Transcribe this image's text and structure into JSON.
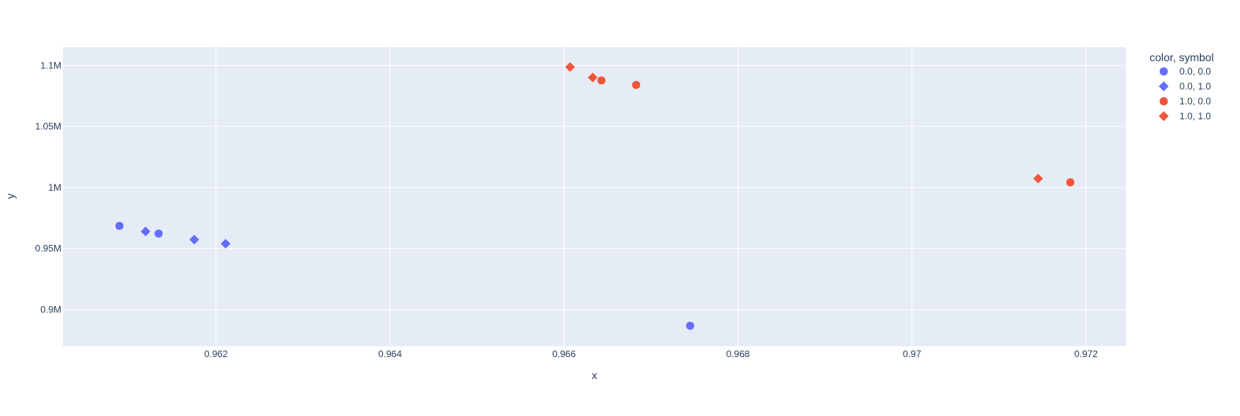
{
  "chart_data": {
    "type": "scatter",
    "xlabel": "x",
    "ylabel": "y",
    "xlim": [
      0.96024,
      0.97246
    ],
    "ylim": [
      870000,
      1115000
    ],
    "x_ticks": [
      0.962,
      0.964,
      0.966,
      0.968,
      0.97,
      0.972
    ],
    "x_tick_labels": [
      "0.962",
      "0.964",
      "0.966",
      "0.968",
      "0.97",
      "0.972"
    ],
    "y_ticks": [
      900000,
      950000,
      1000000,
      1050000,
      1100000
    ],
    "y_tick_labels": [
      "0.9M",
      "0.95M",
      "1M",
      "1.05M",
      "1.1M"
    ],
    "grid": true,
    "legend": {
      "title": "color, symbol",
      "position": "top-right"
    },
    "colors": {
      "0.0": "#636efa",
      "1.0": "#ef553b",
      "plot_bg": "#e5ecf6",
      "grid": "#ffffff",
      "text": "#2a3f5f"
    },
    "series": [
      {
        "name": "0.0, 0.0",
        "color": "0.0",
        "symbol": "circle",
        "points": [
          {
            "x": 0.96089,
            "y": 968500
          },
          {
            "x": 0.96134,
            "y": 962200
          },
          {
            "x": 0.96745,
            "y": 886700
          }
        ]
      },
      {
        "name": "0.0, 1.0",
        "color": "0.0",
        "symbol": "diamond",
        "points": [
          {
            "x": 0.96119,
            "y": 964000
          },
          {
            "x": 0.96175,
            "y": 957300
          },
          {
            "x": 0.96211,
            "y": 953900
          }
        ]
      },
      {
        "name": "1.0, 0.0",
        "color": "1.0",
        "symbol": "circle",
        "points": [
          {
            "x": 0.96643,
            "y": 1087700
          },
          {
            "x": 0.96683,
            "y": 1084000
          },
          {
            "x": 0.97182,
            "y": 1004200
          }
        ]
      },
      {
        "name": "1.0, 1.0",
        "color": "1.0",
        "symbol": "diamond",
        "points": [
          {
            "x": 0.96607,
            "y": 1098700
          },
          {
            "x": 0.96633,
            "y": 1090100
          },
          {
            "x": 0.97145,
            "y": 1007300
          }
        ]
      }
    ]
  }
}
